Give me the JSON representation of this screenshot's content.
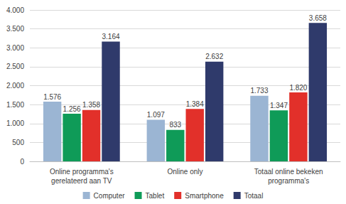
{
  "chart_data": {
    "type": "bar",
    "categories": [
      "Online programma's\ngerelateerd aan TV",
      "Online only",
      "Totaal online bekeken\nprogramma's"
    ],
    "series": [
      {
        "name": "Computer",
        "color": "#9bb5d3",
        "values": [
          1576,
          1097,
          1733
        ],
        "value_labels": [
          "1.576",
          "1.097",
          "1.733"
        ]
      },
      {
        "name": "Tablet",
        "color": "#0f9b58",
        "values": [
          1256,
          833,
          1347
        ],
        "value_labels": [
          "1.256",
          "833",
          "1.347"
        ]
      },
      {
        "name": "Smartphone",
        "color": "#e2302a",
        "values": [
          1358,
          1384,
          1820
        ],
        "value_labels": [
          "1.358",
          "1.384",
          "1.820"
        ]
      },
      {
        "name": "Totaal",
        "color": "#2f3a6b",
        "values": [
          3164,
          2632,
          3658
        ],
        "value_labels": [
          "3.164",
          "2.632",
          "3.658"
        ]
      }
    ],
    "ylim": [
      0,
      4000
    ],
    "yticks": [
      0,
      500,
      {
        "value": 1000,
        "label": "1.000"
      },
      {
        "value": 1500,
        "label": "1.500"
      },
      {
        "value": 2000,
        "label": "2.000"
      },
      {
        "value": 2500,
        "label": "2.500"
      },
      {
        "value": 3000,
        "label": "3.000"
      },
      {
        "value": 3500,
        "label": "3.500"
      },
      {
        "value": 4000,
        "label": "4.000"
      }
    ],
    "grid": true,
    "legend": "bottom",
    "data_labels": true
  }
}
